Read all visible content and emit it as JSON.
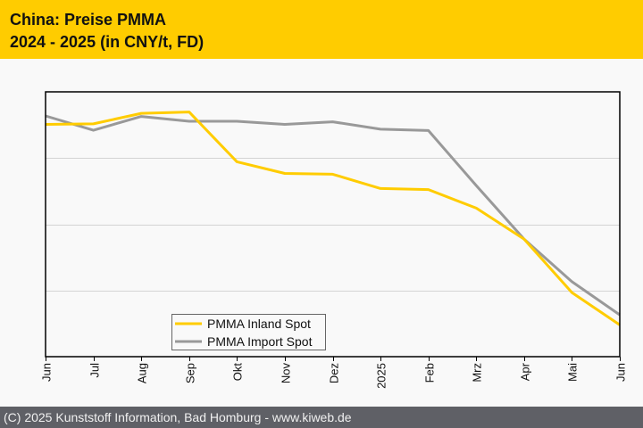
{
  "header": {
    "title_line1": "China: Preise PMMA",
    "title_line2": "2024 - 2025 (in CNY/t, FD)"
  },
  "footer": {
    "copyright": "(C) 2025 Kunststoff Information, Bad Homburg - www.kiweb.de"
  },
  "chart_data": {
    "type": "line",
    "title": "China: Preise PMMA 2024 - 2025 (in CNY/t, FD)",
    "xlabel": "",
    "ylabel": "",
    "y_note": "No y-axis labels shown; values are relative index (0 = axis bottom, 100 = axis top)",
    "ylim": [
      0,
      100
    ],
    "y_gridlines": [
      25,
      50,
      75
    ],
    "grid": true,
    "legend_position": "bottom-left",
    "x": [
      "Jun",
      "Jul",
      "Aug",
      "Sep",
      "Okt",
      "Nov",
      "Dez",
      "2025",
      "Feb",
      "Mrz",
      "Apr",
      "Mai",
      "Jun"
    ],
    "series": [
      {
        "name": "PMMA Inland Spot",
        "color": "#ffcc00",
        "values": [
          87.7,
          87.9,
          91.9,
          92.4,
          73.6,
          69.2,
          68.9,
          63.5,
          63.1,
          56.1,
          44.4,
          24.2,
          12.0
        ]
      },
      {
        "name": "PMMA Import Spot",
        "color": "#999999",
        "values": [
          90.9,
          85.5,
          90.7,
          88.9,
          88.9,
          87.7,
          88.7,
          85.9,
          85.4,
          64.6,
          44.4,
          28.3,
          15.8
        ]
      }
    ]
  }
}
